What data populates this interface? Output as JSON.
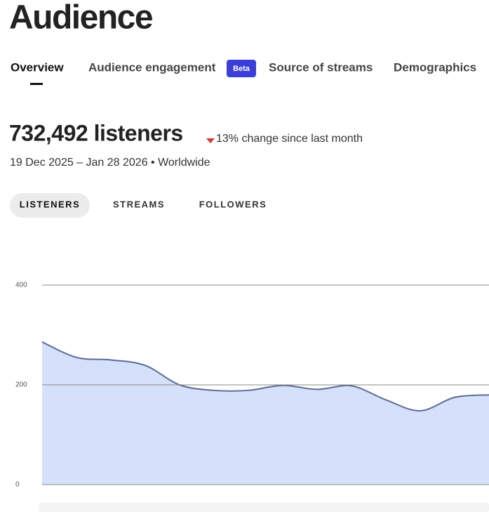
{
  "header": {
    "title": "Audience"
  },
  "tabs": [
    "Overview",
    "Audience engagement",
    "Source of streams",
    "Demographics"
  ],
  "badge": "Beta",
  "summary": {
    "listeners": "732,492 listeners",
    "change": "13% change since last month",
    "period": "19 Dec 2025 – Jan 28 2026 • Worldwide"
  },
  "metric_tabs": [
    "LISTENERS",
    "STREAMS",
    "FOLLOWERS"
  ],
  "chart_data": {
    "type": "area",
    "categories": [
      null,
      null,
      null,
      null,
      null,
      null,
      null,
      null,
      null,
      null,
      null,
      null,
      null,
      null
    ],
    "values": [
      286,
      255,
      250,
      239,
      200,
      189,
      189,
      199,
      191,
      198,
      170,
      148,
      175,
      180
    ],
    "color": "#d5e1fa",
    "line_color": "#5a6b96",
    "ylim": [
      0,
      400
    ],
    "yticks": [
      0,
      200,
      400
    ],
    "grid": true
  }
}
